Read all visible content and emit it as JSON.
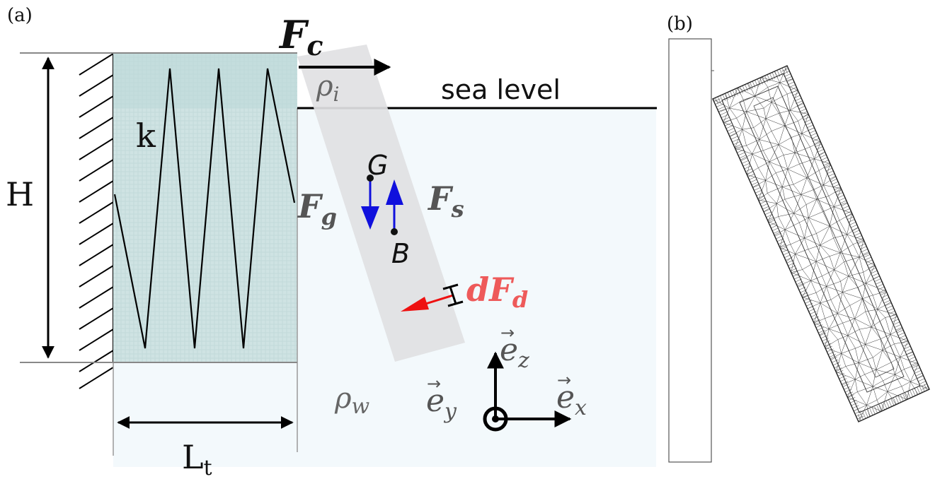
{
  "panel_a": {
    "label": "(a)",
    "labels": {
      "height": "H",
      "spring": "k",
      "tank_length": "L",
      "tank_length_sub": "t",
      "sea_level": "sea level",
      "force_current": "F",
      "force_current_sub": "c",
      "force_gravity": "F",
      "force_gravity_sub": "g",
      "force_buoyancy": "F",
      "force_buoyancy_sub": "s",
      "force_drag": "dF",
      "force_drag_sub": "d",
      "density_ice": "ρ",
      "density_ice_sub": "i",
      "density_water": "ρ",
      "density_water_sub": "w",
      "point_g": "G",
      "point_b": "B",
      "axis_z": "e",
      "axis_z_sub": "z",
      "axis_x": "e",
      "axis_x_sub": "x",
      "axis_y": "e",
      "axis_y_sub": "y",
      "vector_mark": "→"
    },
    "colors": {
      "water": "#f3f9fc",
      "tank": "#cfe3e3",
      "tank_top": "#b9d6d6",
      "body": "#e1e1e3",
      "gravity_arrow": "#1010dd",
      "drag_arrow": "#ee1111",
      "drag_label": "#ee5a5a"
    }
  },
  "panel_b": {
    "label": "(b)"
  }
}
